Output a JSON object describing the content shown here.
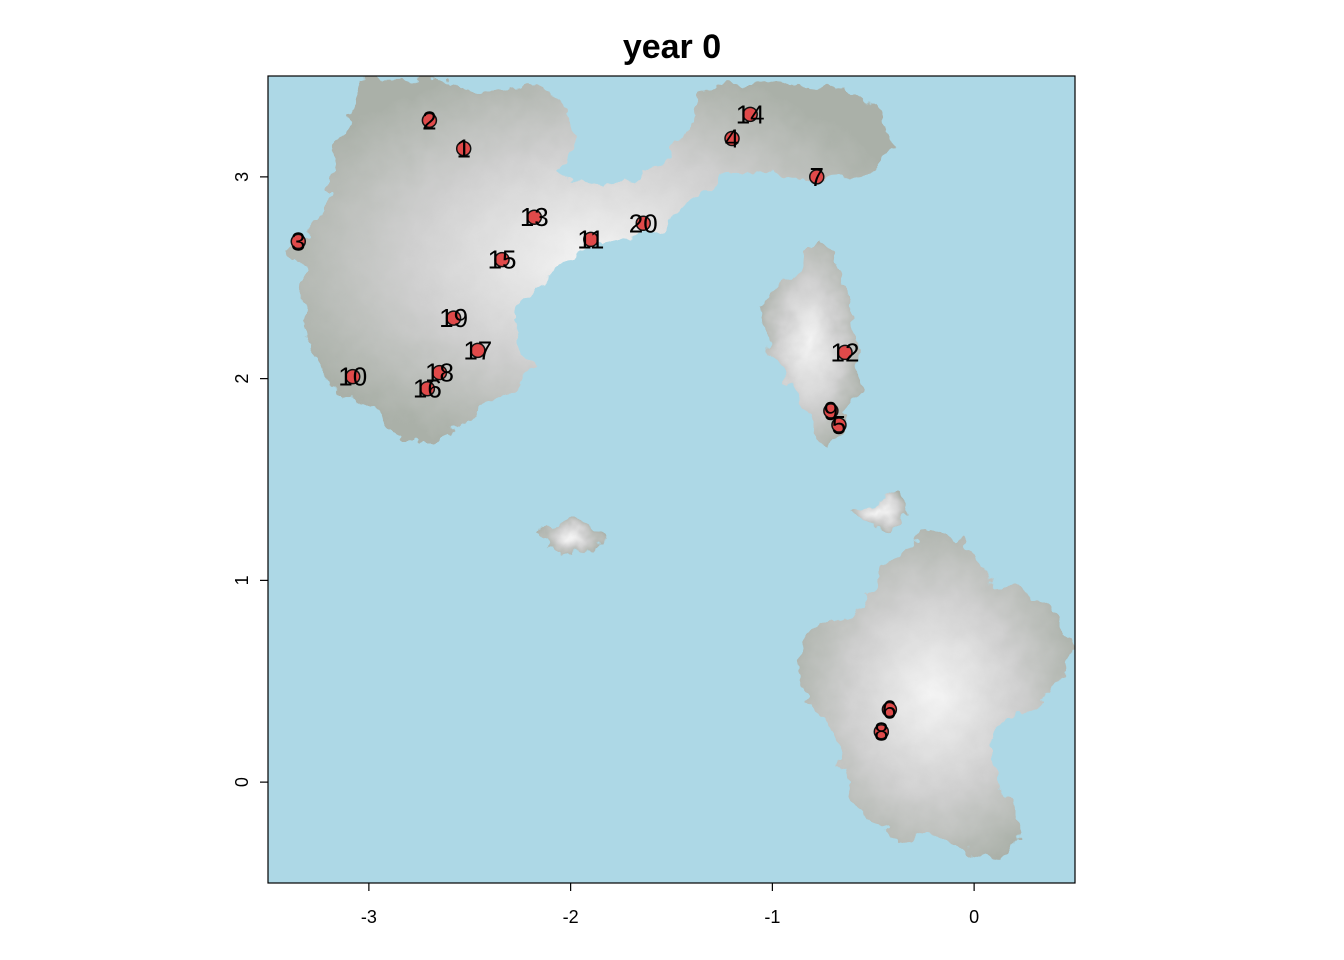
{
  "chart_data": {
    "type": "scatter",
    "title": "year 0",
    "xlabel": "",
    "ylabel": "",
    "xlim": [
      -3.5,
      0.5
    ],
    "ylim": [
      -0.5,
      3.5
    ],
    "x_ticks": [
      -3,
      -2,
      -1,
      0
    ],
    "y_ticks": [
      0,
      1,
      2,
      3
    ],
    "background": "raster terrain map: light-blue water with grey islands",
    "colors": {
      "water": "#add8e6",
      "land_low": "#a9aea6",
      "land_high": "#f2f2f2",
      "point_fill": "#e04a4a",
      "point_stroke": "#111111"
    },
    "points": [
      {
        "label": "1",
        "x": -2.53,
        "y": 3.14
      },
      {
        "label": "2",
        "x": -2.7,
        "y": 3.28
      },
      {
        "label": "3",
        "x": -3.35,
        "y": 2.68
      },
      {
        "label": "4",
        "x": -1.2,
        "y": 3.19
      },
      {
        "label": "5",
        "x": -0.67,
        "y": 1.77
      },
      {
        "label": "6",
        "x": -0.42,
        "y": 0.36
      },
      {
        "label": "7",
        "x": -0.78,
        "y": 3.0
      },
      {
        "label": "8",
        "x": -0.46,
        "y": 0.25
      },
      {
        "label": "9",
        "x": -0.71,
        "y": 1.84
      },
      {
        "label": "10",
        "x": -3.08,
        "y": 2.01
      },
      {
        "label": "11",
        "x": -1.9,
        "y": 2.69
      },
      {
        "label": "12",
        "x": -0.64,
        "y": 2.13
      },
      {
        "label": "13",
        "x": -2.18,
        "y": 2.8
      },
      {
        "label": "14",
        "x": -1.11,
        "y": 3.31
      },
      {
        "label": "15",
        "x": -2.34,
        "y": 2.59
      },
      {
        "label": "16",
        "x": -2.71,
        "y": 1.95
      },
      {
        "label": "17",
        "x": -2.46,
        "y": 2.14
      },
      {
        "label": "18",
        "x": -2.65,
        "y": 2.03
      },
      {
        "label": "19",
        "x": -2.58,
        "y": 2.3
      },
      {
        "label": "20",
        "x": -1.64,
        "y": 2.77
      }
    ]
  }
}
